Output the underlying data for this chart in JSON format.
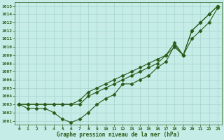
{
  "x": [
    0,
    1,
    2,
    3,
    4,
    5,
    6,
    7,
    8,
    9,
    10,
    11,
    12,
    13,
    14,
    15,
    16,
    17,
    18,
    19,
    20,
    21,
    22,
    23
  ],
  "line_straight1": [
    1003,
    1003,
    1003,
    1003,
    1003,
    1003,
    1003,
    1003,
    1004,
    1004.5,
    1005,
    1005.5,
    1006,
    1006.5,
    1007,
    1007.5,
    1008,
    1009,
    1010,
    1009,
    1012,
    1013,
    1014,
    1015
  ],
  "line_straight2": [
    1003,
    1003,
    1003,
    1003,
    1003,
    1003,
    1003,
    1003.5,
    1004.5,
    1005,
    1005.5,
    1006,
    1006.5,
    1007,
    1007.5,
    1008,
    1008.5,
    1009,
    1010.5,
    1009,
    1012,
    1013,
    1014,
    1015
  ],
  "line_dip": [
    1003,
    1002.5,
    1002.5,
    1002.5,
    1002,
    1001.2,
    1000.8,
    1001.2,
    1002,
    1003.0,
    1003.7,
    1004.2,
    1005.5,
    1005.5,
    1006.0,
    1006.5,
    1007.5,
    1008.2,
    1010.2,
    1009,
    1011,
    1012,
    1013,
    1014.8
  ],
  "ylim_min": 1000.5,
  "ylim_max": 1015.5,
  "yticks": [
    1001,
    1002,
    1003,
    1004,
    1005,
    1006,
    1007,
    1008,
    1009,
    1010,
    1011,
    1012,
    1013,
    1014,
    1015
  ],
  "xticks": [
    0,
    1,
    2,
    3,
    4,
    5,
    6,
    7,
    8,
    9,
    10,
    11,
    12,
    13,
    14,
    15,
    16,
    17,
    18,
    19,
    20,
    21,
    22,
    23
  ],
  "xlabel": "Graphe pression niveau de la mer (hPa)",
  "line_color": "#2a5a18",
  "bg_color": "#c5ece6",
  "grid_color": "#9ecfc8",
  "grid_color2": "#b8dfd9"
}
